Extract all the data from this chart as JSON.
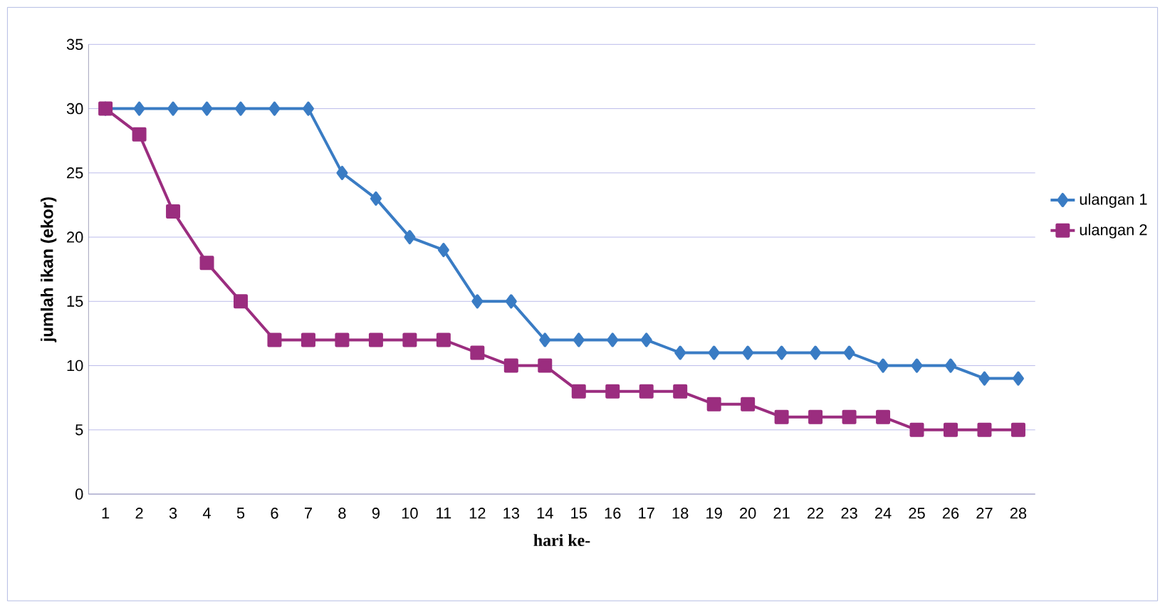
{
  "chart_data": {
    "type": "line",
    "xlabel": "hari ke-",
    "ylabel": "jumlah ikan (ekor)",
    "categories": [
      "1",
      "2",
      "3",
      "4",
      "5",
      "6",
      "7",
      "8",
      "9",
      "10",
      "11",
      "12",
      "13",
      "14",
      "15",
      "16",
      "17",
      "18",
      "19",
      "20",
      "21",
      "22",
      "23",
      "24",
      "25",
      "26",
      "27",
      "28"
    ],
    "series": [
      {
        "name": "ulangan 1",
        "color": "#3a7cc4",
        "marker": "diamond",
        "values": [
          30,
          30,
          30,
          30,
          30,
          30,
          30,
          25,
          23,
          20,
          19,
          15,
          15,
          12,
          12,
          12,
          12,
          11,
          11,
          11,
          11,
          11,
          11,
          10,
          10,
          10,
          9,
          9
        ]
      },
      {
        "name": "ulangan 2",
        "color": "#9b2d7f",
        "marker": "square",
        "values": [
          30,
          28,
          22,
          18,
          15,
          12,
          12,
          12,
          12,
          12,
          12,
          11,
          10,
          10,
          8,
          8,
          8,
          8,
          7,
          7,
          6,
          6,
          6,
          6,
          5,
          5,
          5,
          5
        ]
      }
    ],
    "ylim": [
      0,
      35
    ],
    "yticks": [
      0,
      5,
      10,
      15,
      20,
      25,
      30,
      35
    ],
    "grid": "y",
    "legend": "right"
  }
}
